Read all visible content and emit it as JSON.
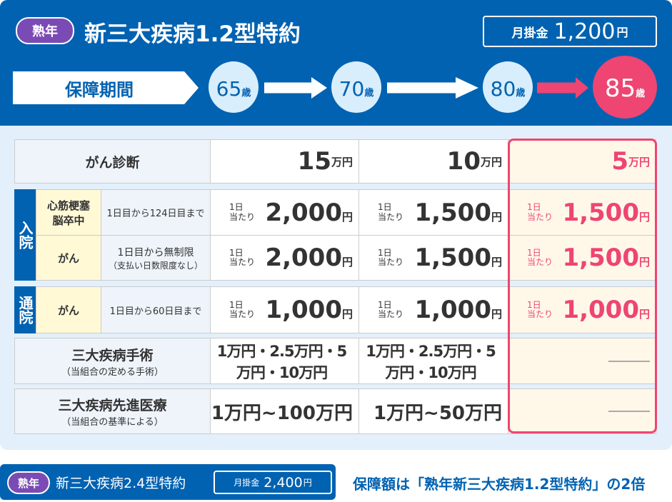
{
  "header": {
    "badge": "熟年",
    "title": "新三大疾病1.2型特約",
    "premium_label": "月掛金",
    "premium_value": "1,200",
    "premium_unit": "円",
    "period_label": "保障期間",
    "ages": [
      {
        "value": "65",
        "unit": "歳"
      },
      {
        "value": "70",
        "unit": "歳"
      },
      {
        "value": "80",
        "unit": "歳"
      },
      {
        "value": "85",
        "unit": "歳"
      }
    ]
  },
  "table": {
    "cancer_diagnosis": {
      "label": "がん診断",
      "values": [
        "15",
        "10",
        "5"
      ],
      "unit": "万円"
    },
    "hospitalization": {
      "group_label": "入院",
      "rows": [
        {
          "disease": "心筋梗塞\n脳卒中",
          "condition": "1日目から124日目まで",
          "values": [
            "2,000",
            "1,500",
            "1,500"
          ]
        },
        {
          "disease": "がん",
          "condition": "1日目から無制限",
          "condition_note": "（支払い日数限度なし）",
          "values": [
            "2,000",
            "1,500",
            "1,500"
          ]
        }
      ]
    },
    "outpatient": {
      "group_label": "通院",
      "disease": "がん",
      "condition": "1日目から60日目まで",
      "values": [
        "1,000",
        "1,000",
        "1,000"
      ]
    },
    "per_day": "1日\n当たり",
    "yen": "円",
    "surgery": {
      "label": "三大疾病手術",
      "note": "（当組合の定める手術）",
      "values": [
        "1万円・2.5万円・5万円・10万円",
        "1万円・2.5万円・5万円・10万円"
      ],
      "empty": "—"
    },
    "advanced": {
      "label": "三大疾病先進医療",
      "note": "（当組合の基準による）",
      "values": [
        "1万円~100万円",
        "1万円~50万円"
      ],
      "empty": "—"
    }
  },
  "footer": {
    "badge": "熟年",
    "title": "新三大疾病2.4型特約",
    "premium_label": "月掛金",
    "premium_value": "2,400",
    "premium_unit": "円",
    "note": "保障額は「熟年新三大疾病1.2型特約」の2倍"
  },
  "colors": {
    "brand": "#0062B1",
    "accent": "#EE4572",
    "badge": "#7B4BB5"
  }
}
